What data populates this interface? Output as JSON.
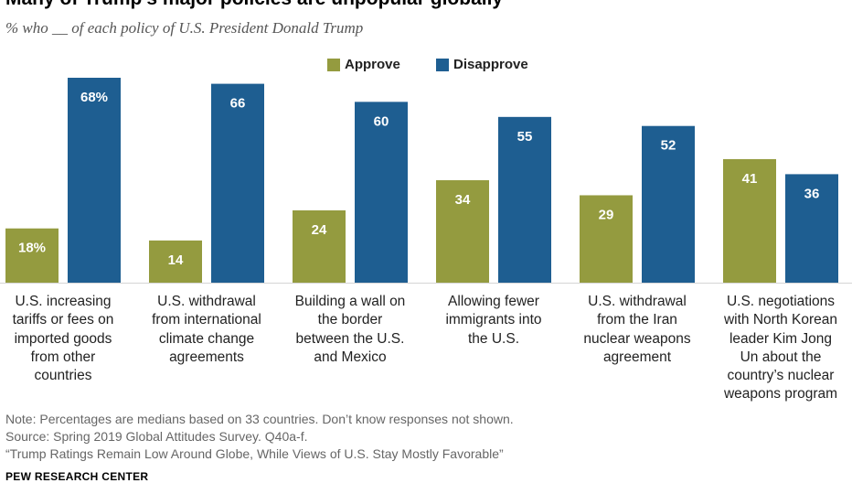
{
  "title": "Many of Trump's major policies are unpopular globally",
  "subtitle": "% who __ of each policy of U.S. President Donald Trump",
  "colors": {
    "approve": "#949B3F",
    "disapprove": "#1E5E91",
    "bar_text": "#ffffff",
    "baseline": "#d5d5d5"
  },
  "chart_data": {
    "type": "bar",
    "title": "Many of Trump's major policies are unpopular globally",
    "subtitle": "% who __ of each policy of U.S. President Donald Trump",
    "xlabel": "",
    "ylabel": "",
    "ylim": [
      0,
      68
    ],
    "grid": false,
    "legend_position": "top-center",
    "categories": [
      "U.S. increasing tariffs or fees on imported goods from other countries",
      "U.S. withdrawal from international climate change agreements",
      "Building a wall on the border between the U.S. and Mexico",
      "Allowing fewer immigrants into the U.S.",
      "U.S. withdrawal from the Iran nuclear weapons agreement",
      "U.S. negotiations with North Korean leader Kim Jong Un about the country’s nuclear weapons program"
    ],
    "category_lines": [
      [
        "U.S. increasing",
        "tariffs or fees on",
        "imported goods",
        "from other",
        "countries"
      ],
      [
        "U.S. withdrawal",
        "from international",
        "climate change",
        "agreements"
      ],
      [
        "Building a wall on",
        "the border",
        "between the U.S.",
        "and Mexico"
      ],
      [
        "Allowing fewer",
        "immigrants into",
        "the U.S."
      ],
      [
        "U.S. withdrawal",
        "from the Iran",
        "nuclear weapons",
        "agreement"
      ],
      [
        "U.S. negotiations",
        "with North Korean",
        "leader Kim Jong",
        "Un about the",
        "country’s nuclear",
        "weapons program"
      ]
    ],
    "series": [
      {
        "name": "Approve",
        "values": [
          18,
          14,
          24,
          34,
          29,
          41
        ],
        "labels": [
          "18%",
          "14",
          "24",
          "34",
          "29",
          "41"
        ]
      },
      {
        "name": "Disapprove",
        "values": [
          68,
          66,
          60,
          55,
          52,
          36
        ],
        "labels": [
          "68%",
          "66",
          "60",
          "55",
          "52",
          "36"
        ]
      }
    ]
  },
  "legend": {
    "approve": "Approve",
    "disapprove": "Disapprove"
  },
  "footer": {
    "note": "Note: Percentages are medians based on 33 countries. Don’t know responses not shown.",
    "source": "Source: Spring 2019 Global Attitudes Survey. Q40a-f.",
    "report": "“Trump Ratings Remain Low Around Globe, While Views of U.S. Stay Mostly Favorable”",
    "brand": "PEW RESEARCH CENTER"
  }
}
